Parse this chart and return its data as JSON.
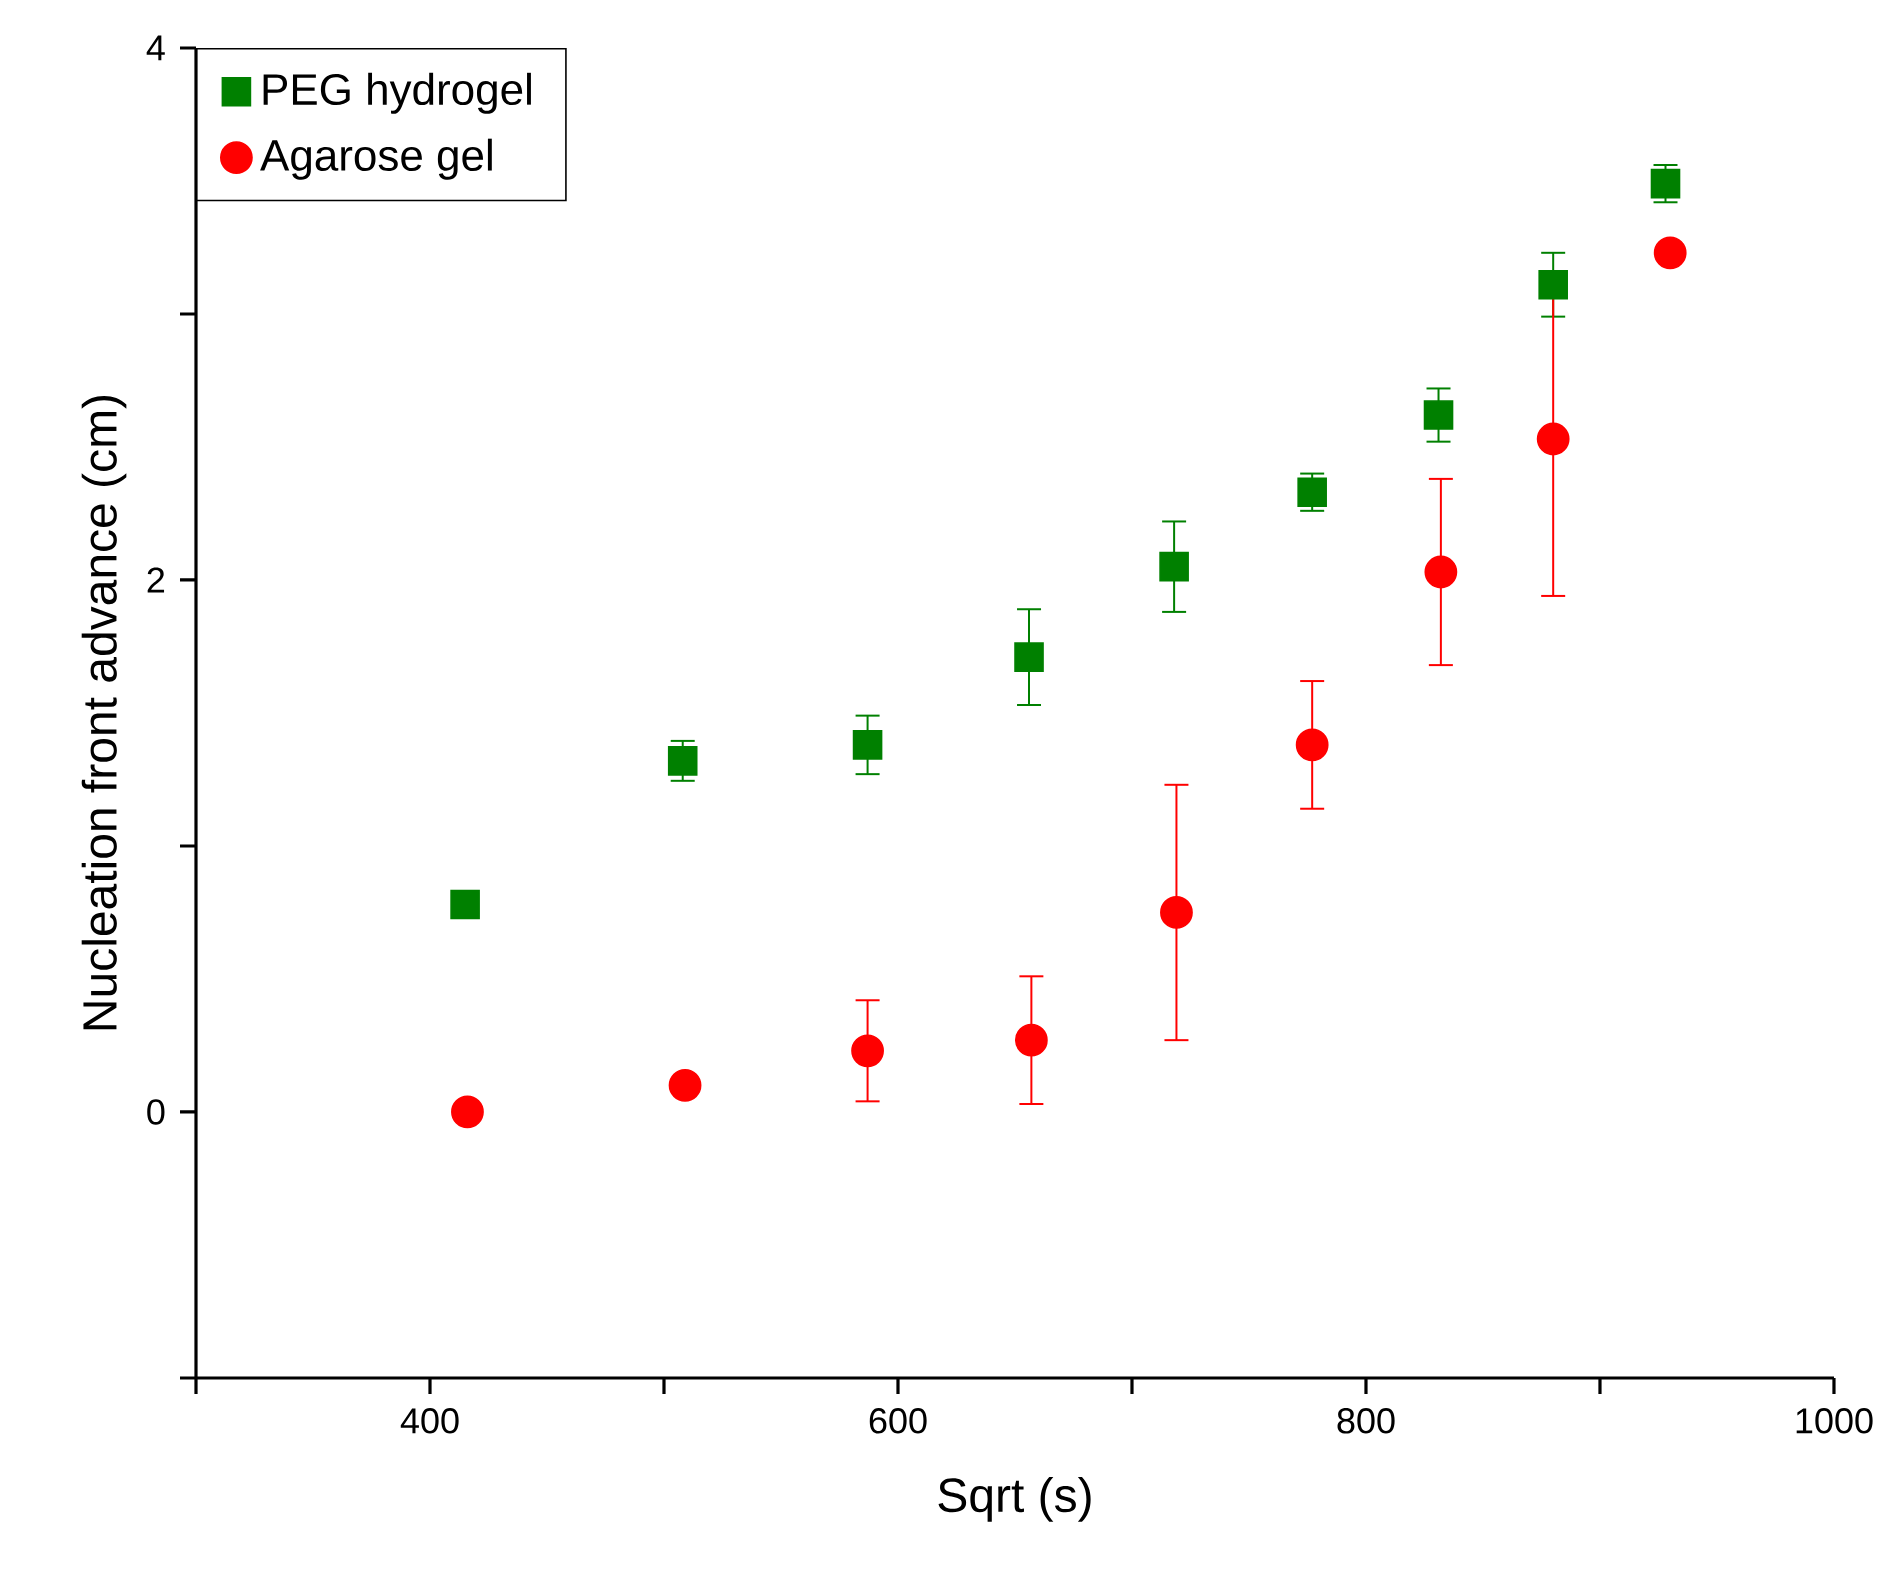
{
  "chart_data": {
    "type": "scatter",
    "xlabel": "Sqrt (s)",
    "ylabel": "Nucleation front advance (cm)",
    "xlim": [
      300,
      1000
    ],
    "ylim": [
      -1,
      4
    ],
    "xticks": [
      {
        "value": 300,
        "label": null
      },
      400,
      {
        "value": 500,
        "label": null
      },
      600,
      {
        "value": 700,
        "label": null
      },
      800,
      {
        "value": 900,
        "label": null
      },
      1000
    ],
    "yticks": [
      {
        "value": -1,
        "label": null
      },
      0,
      {
        "value": 1,
        "label": null
      },
      2,
      {
        "value": 3,
        "label": null
      },
      4
    ],
    "legend": "top left",
    "grid": false,
    "series": [
      {
        "name": "PEG hydrogel",
        "color": "#008000",
        "marker": "square",
        "x": [
          415,
          508,
          587,
          656,
          718,
          777,
          831,
          880,
          928
        ],
        "values": [
          0.78,
          1.32,
          1.38,
          1.71,
          2.05,
          2.33,
          2.62,
          3.11,
          3.49
        ],
        "errors": [
          0.03,
          0.075,
          0.11,
          0.18,
          0.17,
          0.07,
          0.1,
          0.12,
          0.07
        ]
      },
      {
        "name": "Agarose gel",
        "color": "#ff0000",
        "marker": "circle",
        "x": [
          416,
          509,
          587,
          657,
          719,
          777,
          832,
          880,
          930
        ],
        "values": [
          0,
          0.1,
          0.23,
          0.27,
          0.75,
          1.38,
          2.03,
          2.53,
          3.23
        ],
        "errors": [
          null,
          null,
          0.19,
          0.24,
          0.48,
          0.24,
          0.35,
          0.59,
          0.03
        ]
      }
    ]
  }
}
